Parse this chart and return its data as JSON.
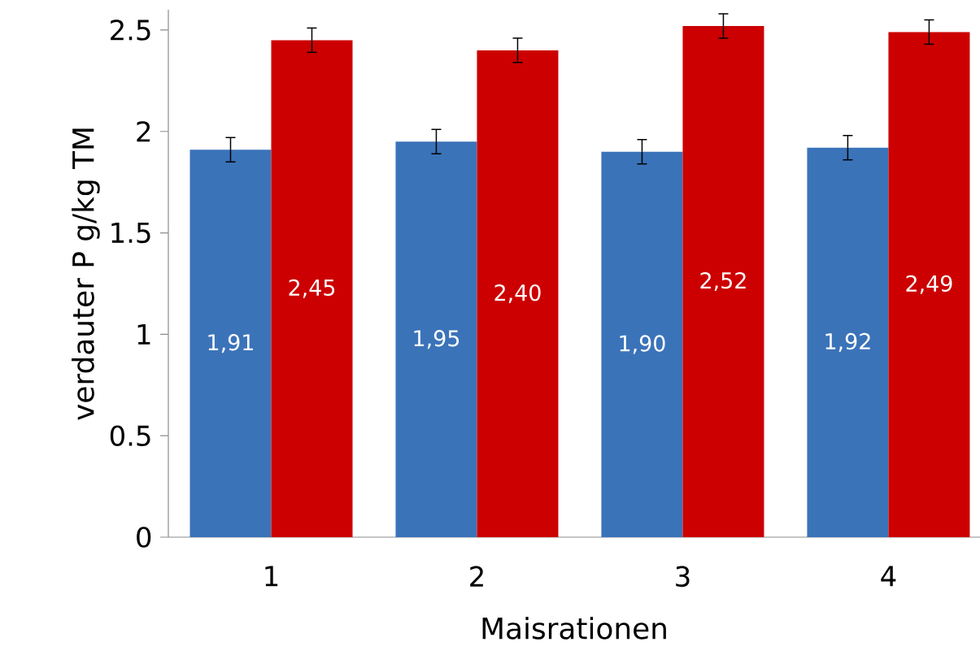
{
  "chart_data": {
    "type": "bar",
    "xlabel": "Maisrationen",
    "ylabel": "verdauter P g/kg TM",
    "categories": [
      "1",
      "2",
      "3",
      "4"
    ],
    "ylim": [
      0,
      2.6
    ],
    "yticks": [
      0,
      0.5,
      1,
      1.5,
      2,
      2.5
    ],
    "series": [
      {
        "color": "#3b73b9",
        "values": [
          1.91,
          1.95,
          1.9,
          1.92
        ],
        "errors": [
          0.06,
          0.06,
          0.06,
          0.06
        ],
        "value_labels": [
          "1,91",
          "1,95",
          "1,90",
          "1,92"
        ]
      },
      {
        "color": "#cc0000",
        "values": [
          2.45,
          2.4,
          2.52,
          2.49
        ],
        "errors": [
          0.06,
          0.06,
          0.06,
          0.06
        ],
        "value_labels": [
          "2,45",
          "2,40",
          "2,52",
          "2,49"
        ]
      }
    ]
  }
}
